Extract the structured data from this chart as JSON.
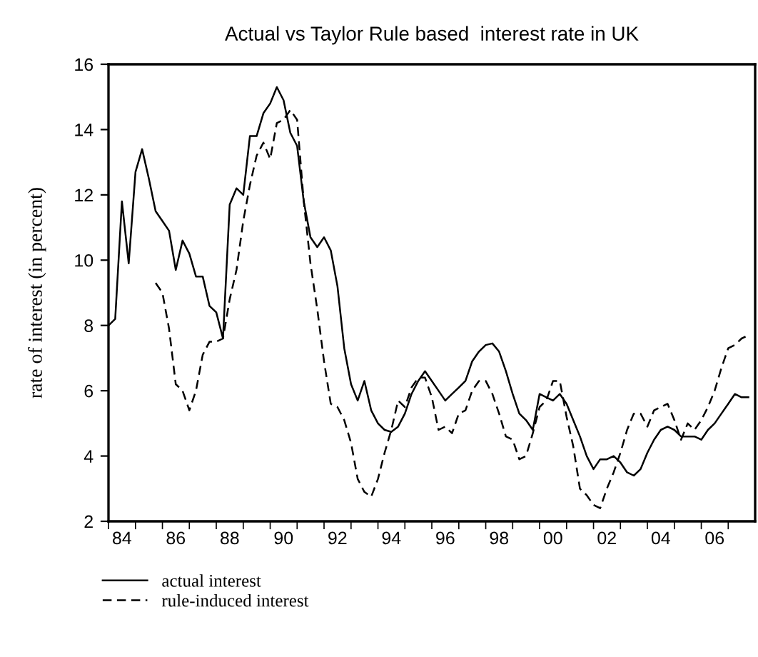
{
  "chart_data": {
    "type": "line",
    "title": "Actual vs Taylor Rule based  interest rate in UK",
    "ylabel": "rate of interest (in percent)",
    "xlim": [
      "1984",
      "2008"
    ],
    "ylim": [
      2,
      16
    ],
    "yticks": [
      2,
      4,
      6,
      8,
      10,
      12,
      14,
      16
    ],
    "xticks": [
      {
        "value": "1984",
        "label": null
      },
      {
        "value": "1985",
        "label": null
      },
      {
        "value": "1986",
        "label": null
      },
      {
        "value": "1987",
        "label": null
      },
      {
        "value": "1988",
        "label": null
      },
      {
        "value": "1989",
        "label": null
      },
      {
        "value": "1990",
        "label": null
      },
      {
        "value": "1991",
        "label": null
      },
      {
        "value": "1992",
        "label": null
      },
      {
        "value": "1993",
        "label": null
      },
      {
        "value": "1994",
        "label": null
      },
      {
        "value": "1995",
        "label": null
      },
      {
        "value": "1996",
        "label": null
      },
      {
        "value": "1997",
        "label": null
      },
      {
        "value": "1998",
        "label": null
      },
      {
        "value": "1999",
        "label": null
      },
      {
        "value": "2000",
        "label": null
      },
      {
        "value": "2001",
        "label": null
      },
      {
        "value": "2002",
        "label": null
      },
      {
        "value": "2003",
        "label": null
      },
      {
        "value": "2004",
        "label": null
      },
      {
        "value": "2005",
        "label": null
      },
      {
        "value": "2006",
        "label": null
      },
      {
        "value": "2007",
        "label": null
      },
      {
        "value": "1984-07",
        "label": "84"
      },
      {
        "value": "1986-07",
        "label": "86"
      },
      {
        "value": "1988-07",
        "label": "88"
      },
      {
        "value": "1990-07",
        "label": "90"
      },
      {
        "value": "1992-07",
        "label": "92"
      },
      {
        "value": "1994-07",
        "label": "94"
      },
      {
        "value": "1996-07",
        "label": "96"
      },
      {
        "value": "1998-07",
        "label": "98"
      },
      {
        "value": "2000-07",
        "label": "00"
      },
      {
        "value": "2002-07",
        "label": "02"
      },
      {
        "value": "2004-07",
        "label": "04"
      },
      {
        "value": "2006-07",
        "label": "06"
      }
    ],
    "grid": false,
    "legend": "bottom left",
    "marker": "none",
    "series": [
      {
        "name": "actual interest",
        "color": "#000000",
        "line_style": "solid",
        "x": [
          "1984-01",
          "1984-04",
          "1984-07",
          "1984-10",
          "1985-01",
          "1985-04",
          "1985-07",
          "1985-10",
          "1986-01",
          "1986-04",
          "1986-07",
          "1986-10",
          "1987-01",
          "1987-04",
          "1987-07",
          "1987-10",
          "1988-01",
          "1988-04",
          "1988-07",
          "1988-10",
          "1989-01",
          "1989-04",
          "1989-07",
          "1989-10",
          "1990-01",
          "1990-04",
          "1990-07",
          "1990-10",
          "1991-01",
          "1991-04",
          "1991-07",
          "1991-10",
          "1992-01",
          "1992-04",
          "1992-07",
          "1992-10",
          "1993-01",
          "1993-04",
          "1993-07",
          "1993-10",
          "1994-01",
          "1994-04",
          "1994-07",
          "1994-10",
          "1995-01",
          "1995-04",
          "1995-07",
          "1995-10",
          "1996-01",
          "1996-04",
          "1996-07",
          "1996-10",
          "1997-01",
          "1997-04",
          "1997-07",
          "1997-10",
          "1998-01",
          "1998-04",
          "1998-07",
          "1998-10",
          "1999-01",
          "1999-04",
          "1999-07",
          "1999-10",
          "2000-01",
          "2000-04",
          "2000-07",
          "2000-10",
          "2001-01",
          "2001-04",
          "2001-07",
          "2001-10",
          "2002-01",
          "2002-04",
          "2002-07",
          "2002-10",
          "2003-01",
          "2003-04",
          "2003-07",
          "2003-10",
          "2004-01",
          "2004-04",
          "2004-07",
          "2004-10",
          "2005-01",
          "2005-04",
          "2005-07",
          "2005-10",
          "2006-01",
          "2006-04",
          "2006-07",
          "2006-10",
          "2007-01",
          "2007-04",
          "2007-07",
          "2007-10"
        ],
        "values": [
          8.0,
          8.2,
          11.8,
          9.9,
          12.7,
          13.4,
          12.5,
          11.5,
          11.2,
          10.9,
          9.7,
          10.6,
          10.2,
          9.5,
          9.5,
          8.6,
          8.4,
          7.6,
          11.7,
          12.2,
          12.0,
          13.8,
          13.8,
          14.5,
          14.8,
          15.3,
          14.9,
          13.9,
          13.5,
          11.8,
          10.7,
          10.4,
          10.7,
          10.3,
          9.2,
          7.3,
          6.2,
          5.7,
          6.3,
          5.4,
          5.0,
          4.8,
          4.74,
          4.9,
          5.3,
          5.9,
          6.3,
          6.6,
          6.3,
          6.0,
          5.7,
          5.9,
          6.1,
          6.3,
          6.9,
          7.2,
          7.4,
          7.45,
          7.2,
          6.6,
          5.9,
          5.3,
          5.1,
          4.8,
          5.9,
          5.8,
          5.7,
          5.9,
          5.6,
          5.1,
          4.6,
          4.0,
          3.6,
          3.9,
          3.9,
          4.0,
          3.8,
          3.5,
          3.4,
          3.6,
          4.1,
          4.5,
          4.8,
          4.9,
          4.8,
          4.6,
          4.6,
          4.6,
          4.5,
          4.8,
          5.0,
          5.3,
          5.6,
          5.9,
          5.8,
          5.8
        ]
      },
      {
        "name": "rule-induced interest",
        "color": "#000000",
        "line_style": "dashed",
        "x": [
          "1985-10",
          "1986-01",
          "1986-04",
          "1986-07",
          "1986-10",
          "1987-01",
          "1987-04",
          "1987-07",
          "1987-10",
          "1988-01",
          "1988-04",
          "1988-07",
          "1988-10",
          "1989-01",
          "1989-04",
          "1989-07",
          "1989-10",
          "1990-01",
          "1990-04",
          "1990-07",
          "1990-10",
          "1991-01",
          "1991-04",
          "1991-07",
          "1991-10",
          "1992-01",
          "1992-04",
          "1992-07",
          "1992-10",
          "1993-01",
          "1993-04",
          "1993-07",
          "1993-10",
          "1994-01",
          "1994-04",
          "1994-07",
          "1994-10",
          "1995-01",
          "1995-04",
          "1995-07",
          "1995-10",
          "1996-01",
          "1996-04",
          "1996-07",
          "1996-10",
          "1997-01",
          "1997-04",
          "1997-07",
          "1997-10",
          "1998-01",
          "1998-04",
          "1998-07",
          "1998-10",
          "1999-01",
          "1999-04",
          "1999-07",
          "1999-10",
          "2000-01",
          "2000-04",
          "2000-07",
          "2000-10",
          "2001-01",
          "2001-04",
          "2001-07",
          "2001-10",
          "2002-01",
          "2002-04",
          "2002-07",
          "2002-10",
          "2003-01",
          "2003-04",
          "2003-07",
          "2003-10",
          "2004-01",
          "2004-04",
          "2004-07",
          "2004-10",
          "2005-01",
          "2005-04",
          "2005-07",
          "2005-10",
          "2006-01",
          "2006-04",
          "2006-07",
          "2006-10",
          "2007-01",
          "2007-04",
          "2007-07",
          "2007-10"
        ],
        "values": [
          9.3,
          9.0,
          7.9,
          6.2,
          6.0,
          5.4,
          6.0,
          7.1,
          7.5,
          7.5,
          7.6,
          8.8,
          9.7,
          11.2,
          12.3,
          13.2,
          13.6,
          13.1,
          14.2,
          14.3,
          14.6,
          14.3,
          11.8,
          9.9,
          8.5,
          6.9,
          5.6,
          5.5,
          5.1,
          4.4,
          3.3,
          2.9,
          2.75,
          3.3,
          4.1,
          4.8,
          5.7,
          5.5,
          6.1,
          6.4,
          6.4,
          5.8,
          4.8,
          4.9,
          4.7,
          5.3,
          5.4,
          6.0,
          6.3,
          6.3,
          5.9,
          5.3,
          4.6,
          4.5,
          3.9,
          4.0,
          4.7,
          5.5,
          5.7,
          6.3,
          6.3,
          5.2,
          4.3,
          3.0,
          2.8,
          2.5,
          2.4,
          3.0,
          3.5,
          4.1,
          4.8,
          5.3,
          5.3,
          4.9,
          5.4,
          5.5,
          5.6,
          5.1,
          4.5,
          5.0,
          4.8,
          5.1,
          5.5,
          6.0,
          6.7,
          7.3,
          7.4,
          7.6,
          7.7
        ]
      }
    ]
  }
}
